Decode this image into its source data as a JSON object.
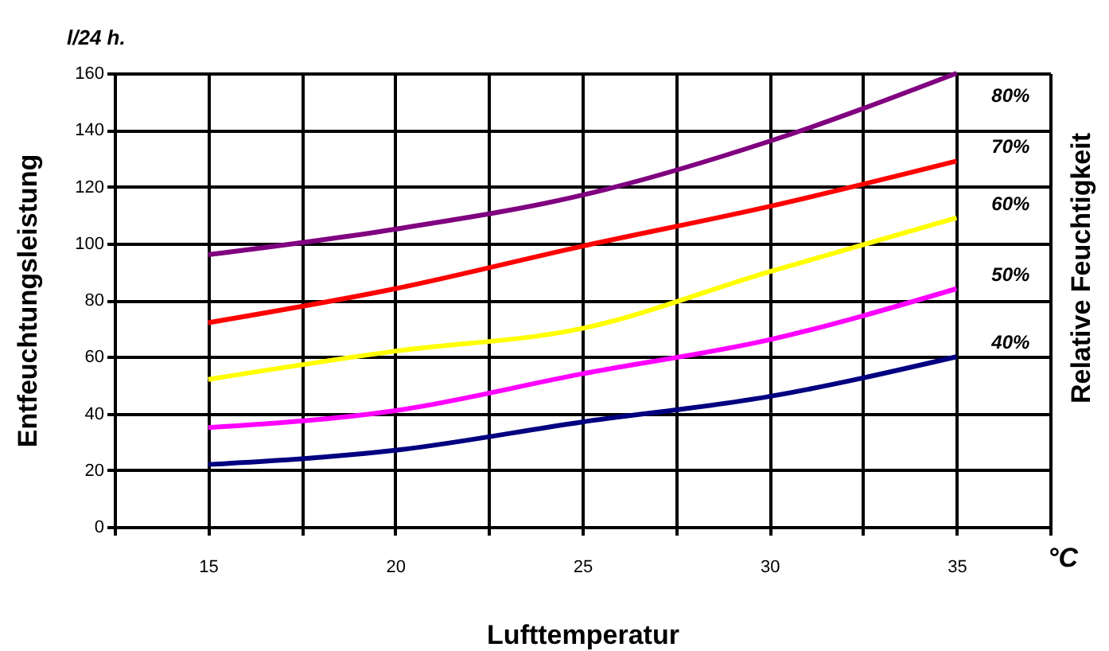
{
  "chart_data": {
    "type": "line",
    "xlabel": "Lufttemperatur",
    "ylabel": "Entfeuchtungsleistung",
    "legend_title": "Relative Feuchtigkeit",
    "annotations": [
      "l/24 h.",
      "°C"
    ],
    "x": [
      15,
      20,
      25,
      30,
      35
    ],
    "series": [
      {
        "name": "80%",
        "color": "#800080",
        "values": [
          96,
          105,
          117,
          136,
          160
        ]
      },
      {
        "name": "70%",
        "color": "#ff0000",
        "values": [
          72,
          84,
          99,
          113,
          129
        ]
      },
      {
        "name": "60%",
        "color": "#ffff00",
        "values": [
          52,
          62,
          70,
          90,
          109
        ]
      },
      {
        "name": "50%",
        "color": "#ff00ff",
        "values": [
          35,
          41,
          54,
          66,
          84
        ]
      },
      {
        "name": "40%",
        "color": "#000080",
        "values": [
          22,
          27,
          37,
          46,
          60
        ]
      }
    ],
    "xlim": [
      12.5,
      37.5
    ],
    "xticks": [
      {
        "value": 12.5,
        "label": null
      },
      15,
      {
        "value": 17.5,
        "label": null
      },
      20,
      {
        "value": 22.5,
        "label": null
      },
      25,
      {
        "value": 27.5,
        "label": null
      },
      30,
      {
        "value": 32.5,
        "label": null
      },
      35,
      {
        "value": 37.5,
        "label": null
      }
    ],
    "ylim": [
      0,
      160
    ],
    "yticks": [
      0,
      20,
      40,
      60,
      80,
      100,
      120,
      140,
      160
    ],
    "grid": true,
    "line_style": "solid"
  }
}
